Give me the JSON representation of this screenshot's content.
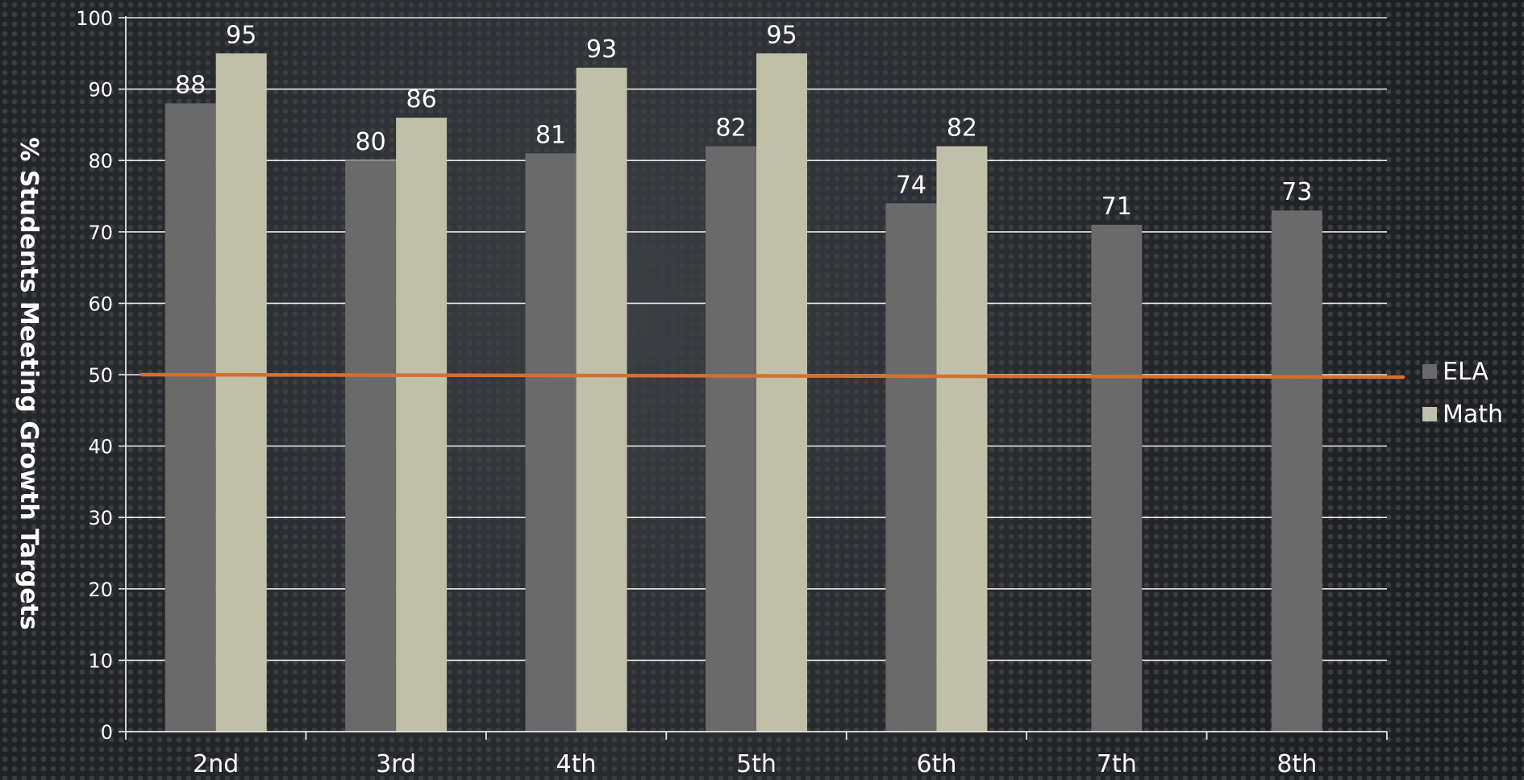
{
  "chart_data": {
    "type": "bar",
    "title": "",
    "ylabel": "% Students Meeting Growth Targets",
    "xlabel": "",
    "categories": [
      "2nd",
      "3rd",
      "4th",
      "5th",
      "6th",
      "7th",
      "8th"
    ],
    "series": [
      {
        "name": "ELA",
        "values": [
          88,
          80,
          81,
          82,
          74,
          71,
          73
        ],
        "color": "#6a6a6b"
      },
      {
        "name": "Math",
        "values": [
          95,
          86,
          93,
          95,
          82,
          null,
          null
        ],
        "color": "#c0c0a8"
      }
    ],
    "reference_line": {
      "value": 50,
      "color": "#d4702f"
    },
    "ylim": [
      0,
      100
    ],
    "yticks": [
      0,
      10,
      20,
      30,
      40,
      50,
      60,
      70,
      80,
      90,
      100
    ],
    "grid": true,
    "legend": "right",
    "data_labels": true,
    "colors": {
      "text": "#ffffff",
      "grid": "#e8e8e8"
    }
  }
}
